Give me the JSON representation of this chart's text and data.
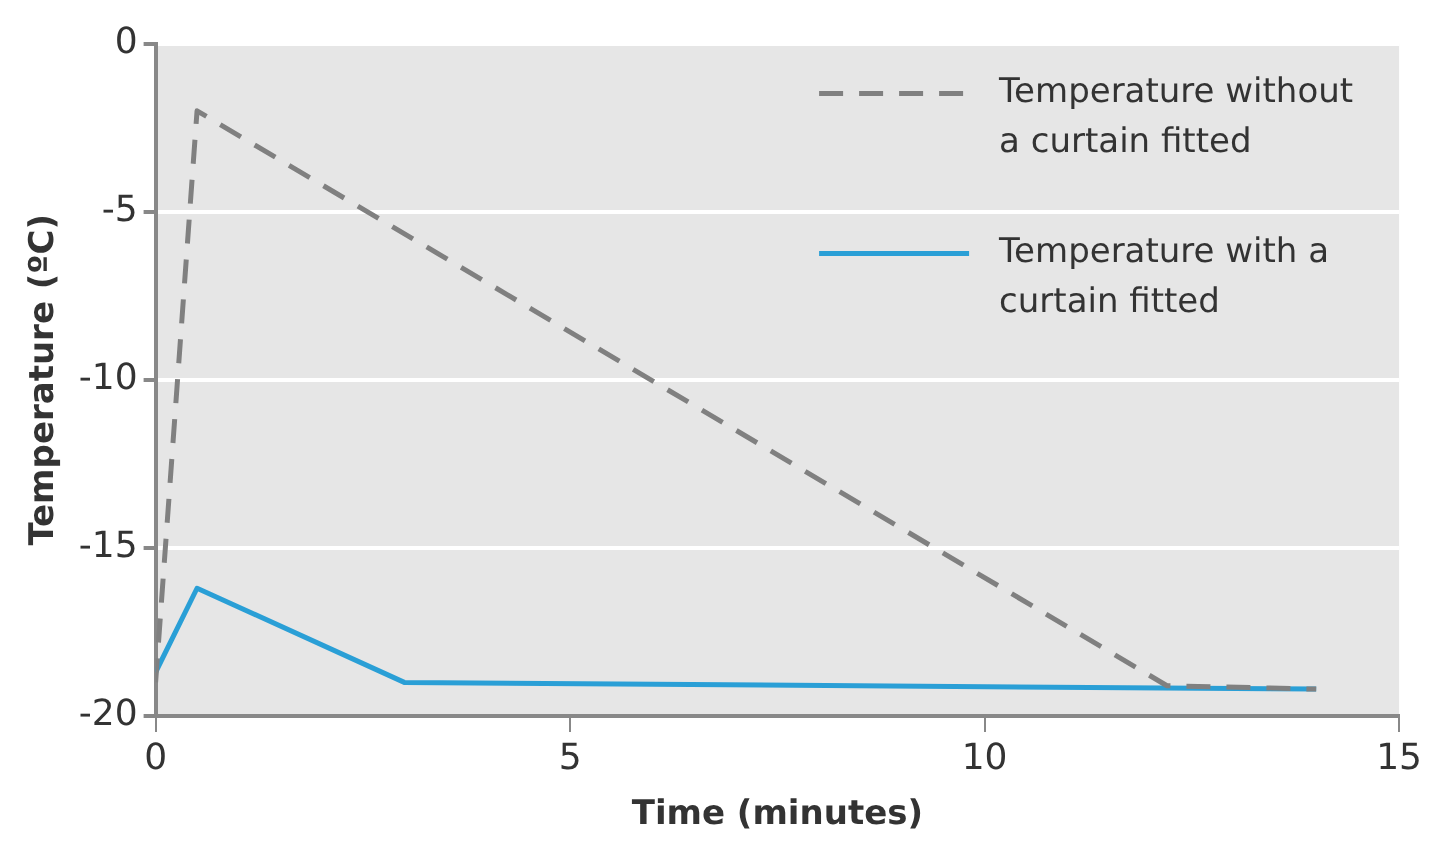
{
  "chart_data": {
    "type": "line",
    "xlabel": "Time (minutes)",
    "ylabel": "Temperature (ºC)",
    "xlim": [
      0,
      15
    ],
    "xticks": [
      0,
      5,
      10,
      15
    ],
    "ylim": [
      -20,
      0
    ],
    "yticks": [
      -20,
      -15,
      -10,
      -5,
      0
    ],
    "grid": "y",
    "legend": "top right",
    "marker": "none",
    "series": [
      {
        "name": "Temperature without a curtain fitted",
        "color": "#808080",
        "line_style": "dashed",
        "x": [
          0,
          0.5,
          12.2,
          14
        ],
        "values": [
          -19,
          -2,
          -19.1,
          -19.2
        ]
      },
      {
        "name": "Temperature with a curtain fitted",
        "color": "#2a9fd6",
        "line_style": "solid",
        "x": [
          0,
          0.5,
          3,
          14
        ],
        "values": [
          -18.7,
          -16.2,
          -19,
          -19.2
        ]
      }
    ]
  }
}
